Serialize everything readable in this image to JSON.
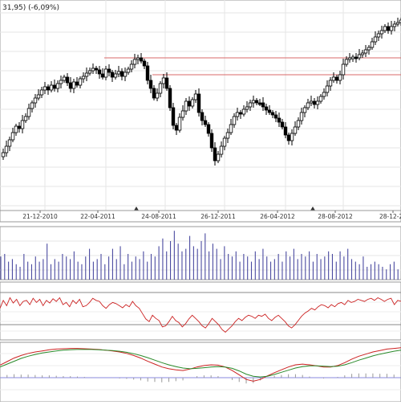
{
  "chart_data": [
    {
      "type": "candlestick",
      "panel": "price",
      "header_text": "31,95) (-6,09%)",
      "x_tick_labels": [
        "21-12-2010",
        "22-04-2011",
        "24-08-2011",
        "26-12-2011",
        "26-04-2012",
        "28-08-2012",
        "28-12-20"
      ],
      "resistance_lines": [
        {
          "label": "upper",
          "color": "#d96a6a"
        },
        {
          "label": "lower",
          "color": "#d96a6a"
        }
      ],
      "markers": [
        "22-04-2011",
        "26-04-2012"
      ],
      "series": [
        {
          "type": "ohlc",
          "up_color": "#ffffff",
          "down_color": "#000000",
          "close_path": [
            [
              0,
              195
            ],
            [
              4,
              190
            ],
            [
              8,
              182
            ],
            [
              12,
              174
            ],
            [
              16,
              165
            ],
            [
              20,
              157
            ],
            [
              24,
              160
            ],
            [
              28,
              150
            ],
            [
              32,
              145
            ],
            [
              36,
              135
            ],
            [
              40,
              128
            ],
            [
              44,
              122
            ],
            [
              48,
              118
            ],
            [
              52,
              112
            ],
            [
              56,
              108
            ],
            [
              60,
              112
            ],
            [
              64,
              106
            ],
            [
              68,
              110
            ],
            [
              72,
              104
            ],
            [
              76,
              100
            ],
            [
              80,
              96
            ],
            [
              84,
              103
            ],
            [
              88,
              110
            ],
            [
              92,
              102
            ],
            [
              96,
              106
            ],
            [
              100,
              98
            ],
            [
              104,
              95
            ],
            [
              108,
              91
            ],
            [
              112,
              88
            ],
            [
              116,
              85
            ],
            [
              120,
              87
            ],
            [
              124,
              92
            ],
            [
              128,
              96
            ],
            [
              132,
              86
            ],
            [
              136,
              90
            ],
            [
              140,
              96
            ],
            [
              144,
              92
            ],
            [
              148,
              89
            ],
            [
              152,
              95
            ],
            [
              156,
              90
            ],
            [
              160,
              86
            ],
            [
              164,
              80
            ],
            [
              168,
              74
            ],
            [
              172,
              72
            ],
            [
              176,
              76
            ],
            [
              180,
              82
            ],
            [
              184,
              100
            ],
            [
              188,
              110
            ],
            [
              192,
              122
            ],
            [
              196,
              116
            ],
            [
              200,
              104
            ],
            [
              204,
              97
            ],
            [
              208,
              110
            ],
            [
              212,
              134
            ],
            [
              216,
              156
            ],
            [
              220,
              162
            ],
            [
              224,
              146
            ],
            [
              228,
              138
            ],
            [
              232,
              126
            ],
            [
              236,
              132
            ],
            [
              240,
              124
            ],
            [
              244,
              117
            ],
            [
              248,
              140
            ],
            [
              252,
              150
            ],
            [
              256,
              155
            ],
            [
              260,
              166
            ],
            [
              264,
              184
            ],
            [
              268,
              200
            ],
            [
              272,
              192
            ],
            [
              276,
              182
            ],
            [
              280,
              172
            ],
            [
              284,
              165
            ],
            [
              288,
              155
            ],
            [
              292,
              145
            ],
            [
              296,
              140
            ],
            [
              300,
              142
            ],
            [
              304,
              136
            ],
            [
              308,
              133
            ],
            [
              312,
              128
            ],
            [
              316,
              125
            ],
            [
              320,
              128
            ],
            [
              324,
              128
            ],
            [
              328,
              133
            ],
            [
              332,
              137
            ],
            [
              336,
              140
            ],
            [
              340,
              143
            ],
            [
              344,
              147
            ],
            [
              348,
              152
            ],
            [
              352,
              158
            ],
            [
              356,
              168
            ],
            [
              360,
              175
            ],
            [
              364,
              166
            ],
            [
              368,
              158
            ],
            [
              372,
              150
            ],
            [
              376,
              140
            ],
            [
              380,
              134
            ],
            [
              384,
              128
            ],
            [
              388,
              126
            ],
            [
              392,
              130
            ],
            [
              396,
              126
            ],
            [
              400,
              120
            ],
            [
              404,
              115
            ],
            [
              408,
              107
            ],
            [
              412,
              100
            ],
            [
              416,
              96
            ],
            [
              420,
              100
            ],
            [
              424,
              93
            ],
            [
              428,
              80
            ],
            [
              432,
              74
            ],
            [
              436,
              72
            ],
            [
              440,
              71
            ],
            [
              444,
              72
            ],
            [
              448,
              68
            ],
            [
              452,
              66
            ],
            [
              456,
              62
            ],
            [
              460,
              59
            ],
            [
              464,
              52
            ],
            [
              468,
              46
            ],
            [
              472,
              42
            ],
            [
              476,
              38
            ],
            [
              480,
              33
            ],
            [
              484,
              38
            ],
            [
              488,
              33
            ],
            [
              492,
              30
            ],
            [
              496,
              28
            ],
            [
              500,
              25
            ]
          ]
        }
      ]
    },
    {
      "type": "bar",
      "panel": "volume",
      "series": [
        {
          "name": "",
          "color": "#4a4aa0",
          "values": [
            0.45,
            0.5,
            0.35,
            0.4,
            0.3,
            0.25,
            0.5,
            0.35,
            0.3,
            0.45,
            0.35,
            0.4,
            0.7,
            0.3,
            0.4,
            0.35,
            0.5,
            0.45,
            0.4,
            0.55,
            0.35,
            0.3,
            0.45,
            0.6,
            0.35,
            0.4,
            0.5,
            0.3,
            0.45,
            0.6,
            0.4,
            0.65,
            0.3,
            0.5,
            0.35,
            0.45,
            0.4,
            0.55,
            0.35,
            0.5,
            0.45,
            0.65,
            0.8,
            0.55,
            0.75,
            0.95,
            0.7,
            0.55,
            0.6,
            0.85,
            0.65,
            0.6,
            0.75,
            0.9,
            0.55,
            0.7,
            0.6,
            0.4,
            0.65,
            0.5,
            0.45,
            0.55,
            0.35,
            0.5,
            0.45,
            0.35,
            0.55,
            0.4,
            0.6,
            0.45,
            0.35,
            0.4,
            0.5,
            0.35,
            0.55,
            0.45,
            0.6,
            0.4,
            0.5,
            0.45,
            0.55,
            0.35,
            0.5,
            0.4,
            0.45,
            0.55,
            0.5,
            0.35,
            0.55,
            0.45,
            0.6,
            0.4,
            0.35,
            0.3,
            0.45,
            0.25,
            0.3,
            0.35,
            0.3,
            0.25,
            0.2,
            0.3,
            0.35,
            0.2
          ]
        }
      ]
    },
    {
      "type": "line",
      "panel": "oscillator",
      "reference_levels": [
        "upper",
        "lower"
      ],
      "series": [
        {
          "name": "",
          "color": "#cc2222",
          "values": [
            0.55,
            0.7,
            0.6,
            0.75,
            0.65,
            0.72,
            0.6,
            0.68,
            0.7,
            0.62,
            0.74,
            0.66,
            0.72,
            0.6,
            0.7,
            0.65,
            0.73,
            0.68,
            0.75,
            0.62,
            0.66,
            0.58,
            0.7,
            0.64,
            0.72,
            0.58,
            0.6,
            0.66,
            0.74,
            0.7,
            0.68,
            0.6,
            0.55,
            0.62,
            0.66,
            0.64,
            0.6,
            0.56,
            0.62,
            0.58,
            0.68,
            0.6,
            0.55,
            0.45,
            0.35,
            0.3,
            0.42,
            0.36,
            0.32,
            0.2,
            0.22,
            0.3,
            0.4,
            0.32,
            0.28,
            0.2,
            0.26,
            0.35,
            0.42,
            0.36,
            0.3,
            0.22,
            0.18,
            0.26,
            0.36,
            0.3,
            0.24,
            0.15,
            0.1,
            0.16,
            0.22,
            0.3,
            0.36,
            0.32,
            0.38,
            0.42,
            0.4,
            0.36,
            0.42,
            0.4,
            0.44,
            0.36,
            0.32,
            0.38,
            0.42,
            0.36,
            0.3,
            0.22,
            0.18,
            0.24,
            0.32,
            0.4,
            0.46,
            0.5,
            0.55,
            0.52,
            0.58,
            0.62,
            0.6,
            0.56,
            0.62,
            0.58,
            0.64,
            0.66,
            0.62,
            0.7,
            0.66,
            0.68,
            0.72,
            0.7,
            0.68,
            0.72,
            0.74,
            0.7,
            0.75,
            0.72,
            0.68,
            0.72,
            0.74,
            0.62,
            0.7,
            0.68
          ]
        }
      ]
    },
    {
      "type": "line",
      "panel": "macd",
      "series": [
        {
          "name": "",
          "color": "#cc2222",
          "values": [
            0.35,
            0.45,
            0.55,
            0.62,
            0.68,
            0.72,
            0.75,
            0.78,
            0.8,
            0.81,
            0.82,
            0.82,
            0.81,
            0.8,
            0.79,
            0.77,
            0.75,
            0.72,
            0.68,
            0.62,
            0.55,
            0.46,
            0.38,
            0.3,
            0.25,
            0.22,
            0.2,
            0.24,
            0.3,
            0.34,
            0.36,
            0.35,
            0.3,
            0.2,
            0.08,
            -0.05,
            -0.1,
            -0.05,
            0.05,
            0.14,
            0.22,
            0.3,
            0.36,
            0.38,
            0.36,
            0.33,
            0.3,
            0.3,
            0.34,
            0.42,
            0.52,
            0.6,
            0.66,
            0.72,
            0.76,
            0.8,
            0.82,
            0.84
          ]
        },
        {
          "name": "",
          "color": "#2a8a2a",
          "values": [
            0.3,
            0.38,
            0.46,
            0.54,
            0.6,
            0.65,
            0.69,
            0.72,
            0.75,
            0.77,
            0.78,
            0.79,
            0.79,
            0.79,
            0.78,
            0.77,
            0.76,
            0.74,
            0.71,
            0.67,
            0.62,
            0.56,
            0.49,
            0.42,
            0.36,
            0.31,
            0.27,
            0.25,
            0.26,
            0.28,
            0.3,
            0.31,
            0.3,
            0.26,
            0.19,
            0.1,
            0.04,
            0.02,
            0.04,
            0.09,
            0.15,
            0.21,
            0.27,
            0.31,
            0.33,
            0.33,
            0.32,
            0.31,
            0.32,
            0.36,
            0.42,
            0.49,
            0.55,
            0.61,
            0.66,
            0.7,
            0.74,
            0.77
          ]
        }
      ],
      "histogram": {
        "color": "#999999",
        "zero_line_color": "#8a8adf"
      }
    }
  ]
}
